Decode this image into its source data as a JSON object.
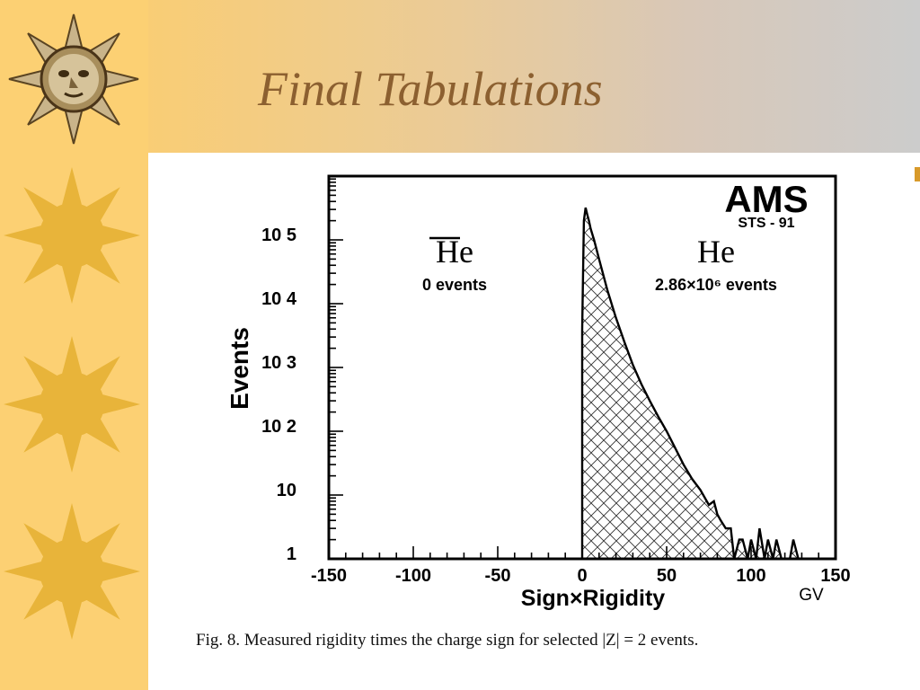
{
  "slide": {
    "title": "Final Tabulations"
  },
  "caption": "Fig. 8. Measured rigidity times the charge sign for selected |Z| = 2 events.",
  "colors": {
    "sidebar": "#fcd073",
    "sun": "#e8b43a",
    "title_text": "#8c6030",
    "title_bar_start": "#f9cd75",
    "title_bar_end": "#cccccc"
  },
  "icons": [
    "sun-face-icon",
    "sun-icon",
    "sun-icon",
    "sun-icon"
  ],
  "chart_data": {
    "type": "histogram",
    "xlabel": "Sign×Rigidity",
    "xunit": "GV",
    "ylabel": "Events",
    "xlim": [
      -150,
      150
    ],
    "ylim": [
      1,
      1000000
    ],
    "yscale": "log",
    "x_ticks": [
      "-150",
      "-100",
      "-50",
      "0",
      "50",
      "100",
      "150"
    ],
    "y_ticks": [
      "1",
      "10",
      "10 2",
      "10 3",
      "10 4",
      "10 5"
    ],
    "logo": "AMS",
    "logo_sub": "STS - 91",
    "annotations": [
      {
        "label": "He",
        "overline": true,
        "note": "0 events",
        "x": -75
      },
      {
        "label": "He",
        "overline": false,
        "note": "2.86×10⁶ events",
        "x": 75
      }
    ],
    "series": [
      {
        "fill": "crosshatch",
        "x": [
          0,
          1,
          2,
          3,
          4,
          5,
          7,
          10,
          15,
          20,
          25,
          30,
          35,
          40,
          45,
          50,
          55,
          60,
          65,
          70,
          75,
          78,
          80,
          82,
          85,
          88,
          90,
          93,
          95,
          98,
          100,
          103,
          105,
          108,
          110,
          113,
          115,
          118,
          120,
          123,
          125,
          128,
          130
        ],
        "y": [
          4000,
          200000,
          320000,
          250000,
          200000,
          150000,
          100000,
          50000,
          16000,
          6000,
          2500,
          1100,
          550,
          300,
          170,
          100,
          55,
          30,
          18,
          12,
          7,
          8,
          5,
          4,
          3,
          3,
          1,
          2,
          2,
          1,
          2,
          1,
          3,
          1,
          2,
          1,
          2,
          1,
          1,
          1,
          2,
          1,
          1
        ]
      }
    ]
  }
}
